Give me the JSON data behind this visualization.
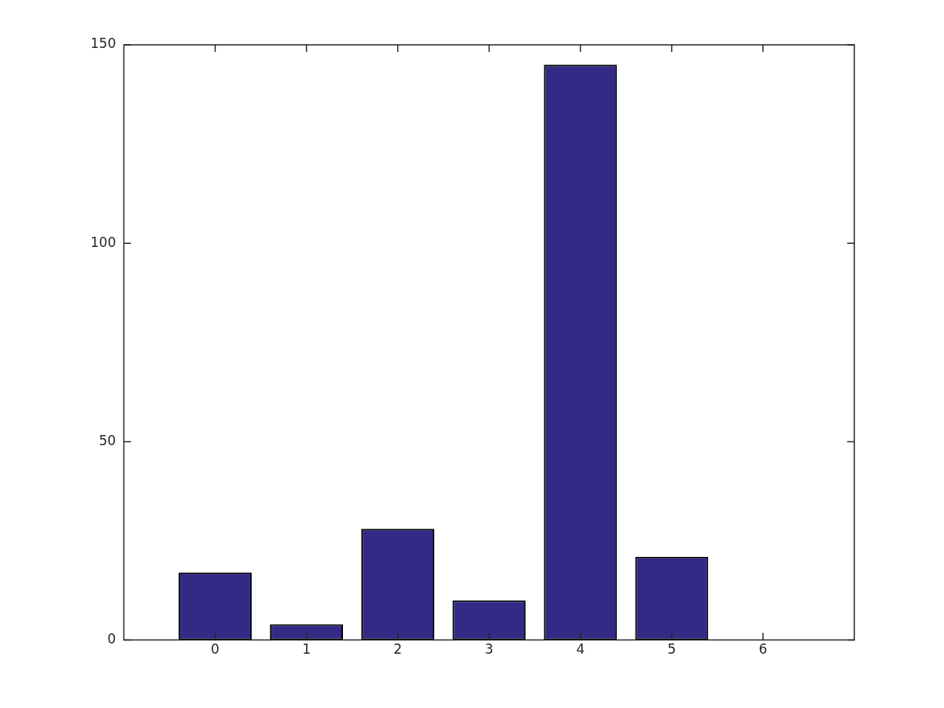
{
  "chart_data": {
    "type": "bar",
    "x": [
      0,
      1,
      2,
      3,
      4,
      5,
      6
    ],
    "values": [
      17,
      4,
      28,
      10,
      145,
      21,
      0
    ],
    "color": "#332a86",
    "xlim": [
      -1,
      7
    ],
    "xticks": [
      0,
      1,
      2,
      3,
      4,
      5,
      6
    ],
    "ylim": [
      0,
      150
    ],
    "yticks": [
      0,
      50,
      100,
      150
    ],
    "grid": false,
    "legend": false
  }
}
